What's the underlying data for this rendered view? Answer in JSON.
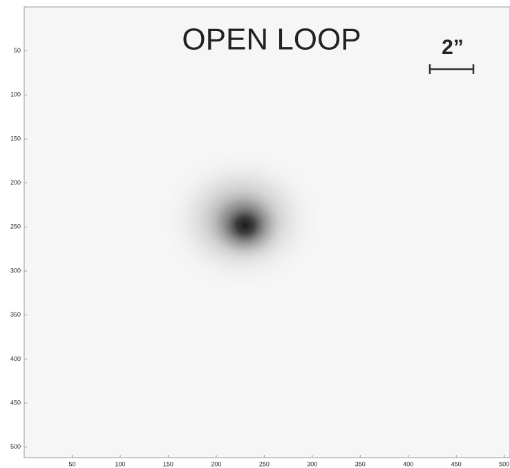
{
  "chart_data": {
    "type": "image",
    "title": "OPEN LOOP",
    "scale_label": "2”",
    "xlim": [
      0,
      506
    ],
    "ylim": [
      0,
      512
    ],
    "xticks": [
      50,
      100,
      150,
      200,
      250,
      300,
      350,
      400,
      450,
      500
    ],
    "yticks": [
      50,
      100,
      150,
      200,
      250,
      300,
      350,
      400,
      450,
      500
    ],
    "spot": {
      "x": 230,
      "y": 248,
      "radius": 45
    }
  }
}
